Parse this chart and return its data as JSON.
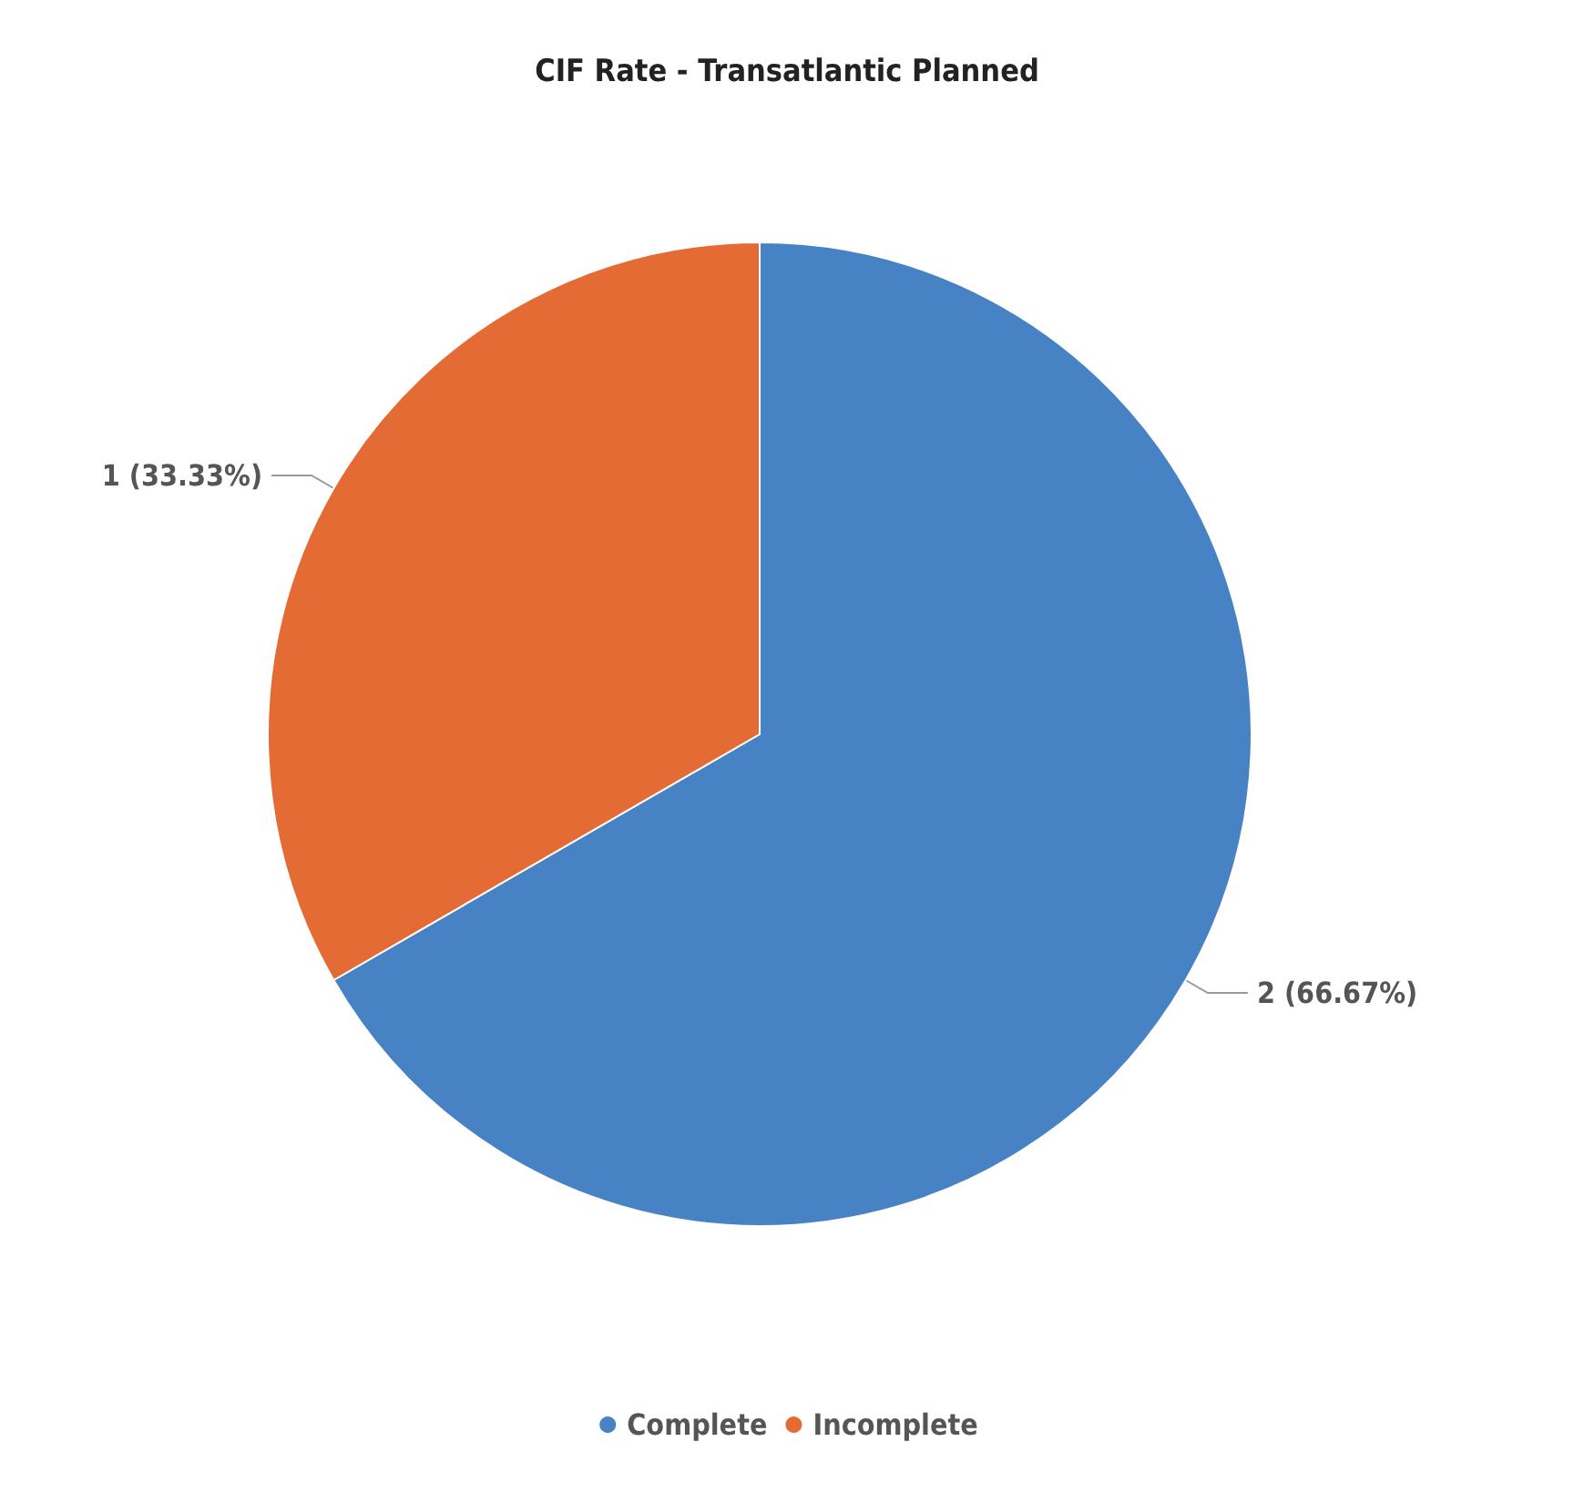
{
  "chart_data": {
    "type": "pie",
    "title": "CIF Rate - Transatlantic Planned",
    "categories": [
      "Complete",
      "Incomplete"
    ],
    "values": [
      2,
      1
    ],
    "colors": [
      "#4682c4",
      "#e56b35"
    ],
    "value_labels": [
      "2 (66.67%)",
      "1 (33.33%)"
    ],
    "legend": "bottom"
  }
}
